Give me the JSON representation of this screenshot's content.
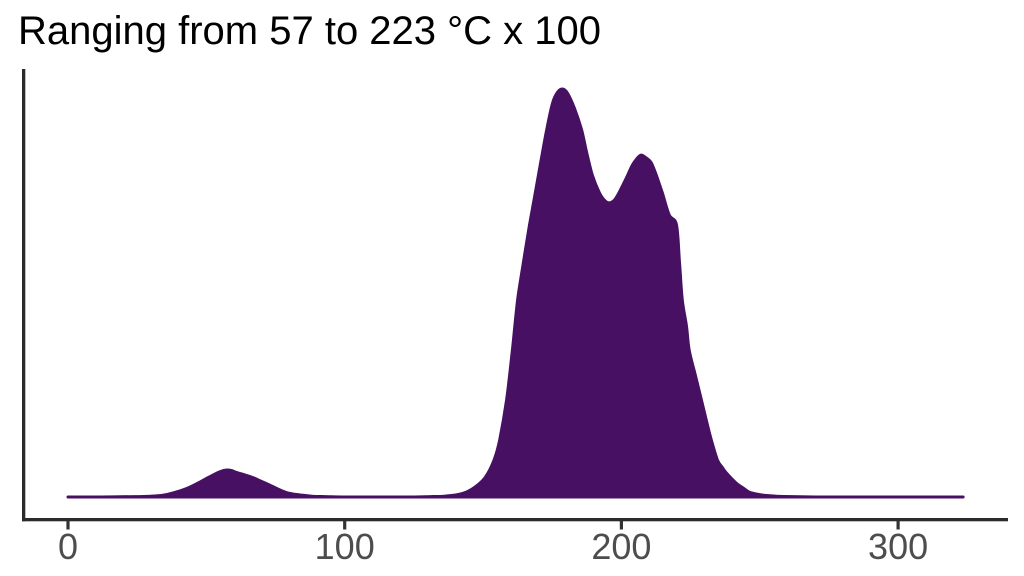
{
  "title": "Ranging from 57 to 223 °C x 100",
  "colors": {
    "density_fill": "#471063",
    "density_stroke": "#471063",
    "axis_line": "#2b2b2b",
    "tick_mark": "#333333",
    "tick_label": "#4d4d4d",
    "title_text": "#000000",
    "background": "#ffffff"
  },
  "chart_data": {
    "type": "area",
    "subtype": "kernel-density",
    "title": "Ranging from 57 to 223 °C x 100",
    "xlabel": "",
    "ylabel": "",
    "legend": "none",
    "grid": false,
    "x_ticks": [
      0,
      100,
      200,
      300
    ],
    "xlim": [
      -17,
      340
    ],
    "curve_x_range": [
      0,
      323.5
    ],
    "y_units": "relative density (max peak = 1.0)",
    "peaks": [
      {
        "x": 57,
        "y": 0.066
      },
      {
        "x": 178.7,
        "y": 1.0
      },
      {
        "x": 207.2,
        "y": 0.838
      }
    ],
    "valley": {
      "x": 195.7,
      "y": 0.721
    },
    "points": [
      [
        0,
        0
      ],
      [
        12,
        0
      ],
      [
        24,
        0.001
      ],
      [
        30,
        0.002
      ],
      [
        34,
        0.004
      ],
      [
        38,
        0.01
      ],
      [
        43,
        0.021
      ],
      [
        47,
        0.034
      ],
      [
        50,
        0.045
      ],
      [
        53,
        0.056
      ],
      [
        55,
        0.062
      ],
      [
        57,
        0.066
      ],
      [
        59,
        0.065
      ],
      [
        61,
        0.06
      ],
      [
        64,
        0.054
      ],
      [
        67,
        0.047
      ],
      [
        70,
        0.038
      ],
      [
        73,
        0.029
      ],
      [
        77,
        0.016
      ],
      [
        80,
        0.009
      ],
      [
        84,
        0.005
      ],
      [
        88,
        0.002
      ],
      [
        93,
        0.001
      ],
      [
        100,
        0
      ],
      [
        112,
        0
      ],
      [
        124,
        0
      ],
      [
        131,
        0.001
      ],
      [
        136,
        0.002
      ],
      [
        140,
        0.005
      ],
      [
        144,
        0.012
      ],
      [
        148,
        0.029
      ],
      [
        151,
        0.05
      ],
      [
        154,
        0.091
      ],
      [
        156,
        0.14
      ],
      [
        158.5,
        0.238
      ],
      [
        160.6,
        0.36
      ],
      [
        162.5,
        0.483
      ],
      [
        164.6,
        0.575
      ],
      [
        166.8,
        0.667
      ],
      [
        169,
        0.75
      ],
      [
        171.1,
        0.83
      ],
      [
        173,
        0.9
      ],
      [
        175.1,
        0.965
      ],
      [
        176.9,
        0.992
      ],
      [
        178.7,
        1.0
      ],
      [
        180.5,
        0.99
      ],
      [
        183,
        0.953
      ],
      [
        185.6,
        0.9
      ],
      [
        187.4,
        0.846
      ],
      [
        189.5,
        0.789
      ],
      [
        192.1,
        0.745
      ],
      [
        194.2,
        0.725
      ],
      [
        195.7,
        0.721
      ],
      [
        197.5,
        0.728
      ],
      [
        199.3,
        0.748
      ],
      [
        201.8,
        0.782
      ],
      [
        204,
        0.814
      ],
      [
        205.8,
        0.831
      ],
      [
        207.2,
        0.838
      ],
      [
        209,
        0.831
      ],
      [
        210.8,
        0.819
      ],
      [
        212.6,
        0.789
      ],
      [
        214.8,
        0.745
      ],
      [
        217.3,
        0.691
      ],
      [
        219.9,
        0.667
      ],
      [
        221,
        0.575
      ],
      [
        222,
        0.483
      ],
      [
        223.5,
        0.42
      ],
      [
        224.5,
        0.36
      ],
      [
        226.7,
        0.299
      ],
      [
        228.9,
        0.238
      ],
      [
        230.8,
        0.185
      ],
      [
        232.5,
        0.14
      ],
      [
        234.7,
        0.091
      ],
      [
        236.5,
        0.072
      ],
      [
        237.9,
        0.059
      ],
      [
        241.5,
        0.034
      ],
      [
        244,
        0.022
      ],
      [
        246.2,
        0.012
      ],
      [
        249,
        0.007
      ],
      [
        252,
        0.004
      ],
      [
        256,
        0.002
      ],
      [
        262,
        0.001
      ],
      [
        270,
        0
      ],
      [
        282,
        0
      ],
      [
        296,
        0
      ],
      [
        310,
        0
      ],
      [
        323.5,
        0
      ]
    ]
  }
}
